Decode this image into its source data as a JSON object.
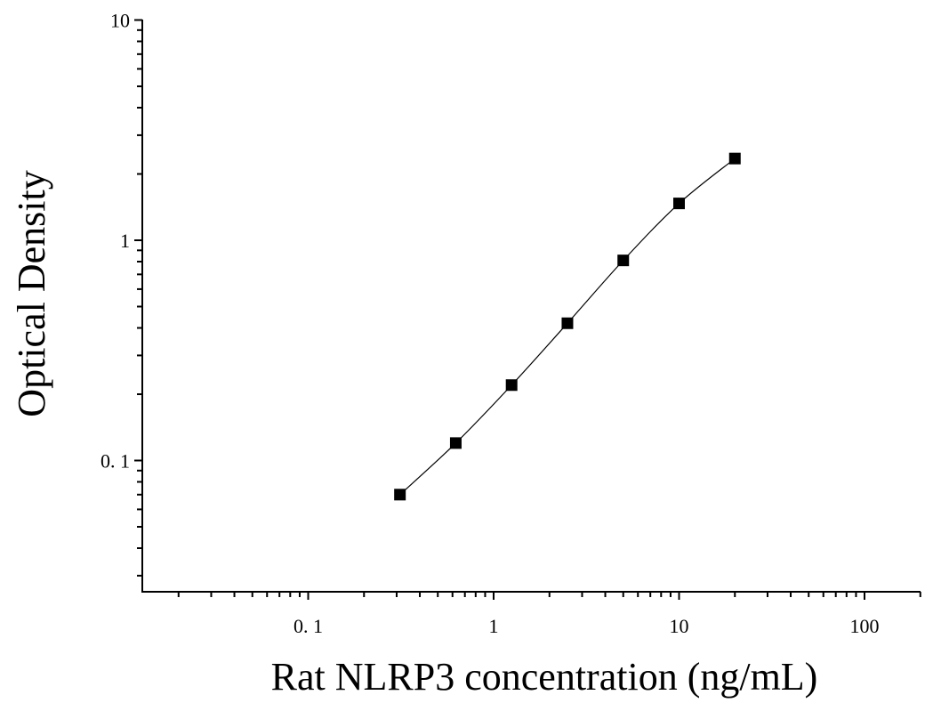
{
  "chart_data": {
    "type": "scatter",
    "xlabel": "Rat NLRP3 concentration (ng/mL)",
    "ylabel": "Optical Density",
    "x_scale": "log",
    "y_scale": "log",
    "xlim": [
      0.012,
      200
    ],
    "ylim": [
      0.025,
      10
    ],
    "x_ticks": [
      {
        "value": 0.1,
        "label": "0. 1"
      },
      {
        "value": 1,
        "label": "1"
      },
      {
        "value": 10,
        "label": "10"
      },
      {
        "value": 100,
        "label": "100"
      }
    ],
    "y_ticks": [
      {
        "value": 0.1,
        "label": "0. 1"
      },
      {
        "value": 1,
        "label": "1"
      },
      {
        "value": 10,
        "label": "10"
      }
    ],
    "grid": false,
    "series": [
      {
        "x": [
          0.3125,
          0.625,
          1.25,
          2.5,
          5,
          10,
          20
        ],
        "y": [
          0.07,
          0.12,
          0.22,
          0.42,
          0.81,
          1.47,
          2.35
        ],
        "marker": "square",
        "color": "#000000",
        "fit_curve": true
      }
    ]
  }
}
